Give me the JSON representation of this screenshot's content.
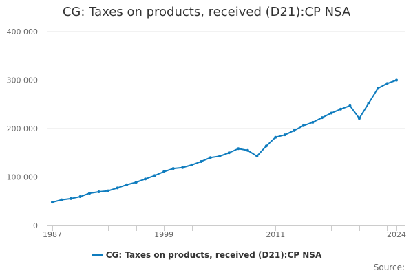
{
  "chart_data": {
    "type": "line",
    "title": "CG: Taxes on products, received (D21):CP NSA",
    "xlabel": "",
    "ylabel": "",
    "xlim": [
      1987,
      2024
    ],
    "ylim": [
      0,
      400000
    ],
    "x_ticks": [
      1987,
      1999,
      2011,
      2024
    ],
    "y_ticks": [
      0,
      100000,
      200000,
      300000,
      400000
    ],
    "y_tick_labels": [
      "0",
      "100 000",
      "200 000",
      "300 000",
      "400 000"
    ],
    "grid": true,
    "legend_position": "bottom",
    "series": [
      {
        "name": "CG: Taxes on products, received (D21):CP NSA",
        "color": "#0f7cbe",
        "x": [
          1987,
          1988,
          1989,
          1990,
          1991,
          1992,
          1993,
          1994,
          1995,
          1996,
          1997,
          1998,
          1999,
          2000,
          2001,
          2002,
          2003,
          2004,
          2005,
          2006,
          2007,
          2008,
          2009,
          2010,
          2011,
          2012,
          2013,
          2014,
          2015,
          2016,
          2017,
          2018,
          2019,
          2020,
          2021,
          2022,
          2023,
          2024
        ],
        "values": [
          48000,
          53000,
          55500,
          59500,
          66500,
          69500,
          71500,
          77500,
          84000,
          89000,
          96000,
          103000,
          111000,
          117500,
          119500,
          125000,
          132000,
          140000,
          143000,
          150000,
          158500,
          155000,
          143000,
          164000,
          182000,
          187000,
          196000,
          206000,
          213000,
          222500,
          232000,
          240000,
          247000,
          221000,
          252000,
          283000,
          293000,
          300000
        ]
      }
    ]
  },
  "source_label": "Source:"
}
